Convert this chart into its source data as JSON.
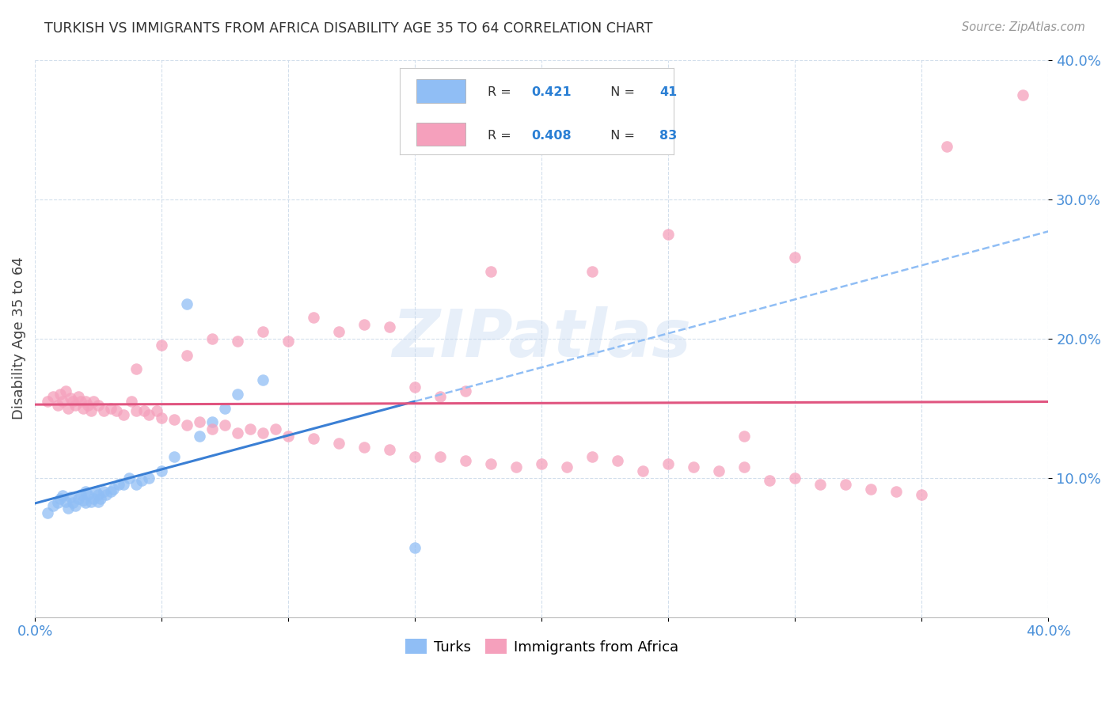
{
  "title": "TURKISH VS IMMIGRANTS FROM AFRICA DISABILITY AGE 35 TO 64 CORRELATION CHART",
  "source": "Source: ZipAtlas.com",
  "ylabel": "Disability Age 35 to 64",
  "xlim": [
    0.0,
    0.4
  ],
  "ylim": [
    0.0,
    0.4
  ],
  "turks_color": "#90bef5",
  "africa_color": "#f5a0bc",
  "trendline_turks_solid_color": "#3a7fd4",
  "trendline_turks_dash_color": "#90bef5",
  "trendline_africa_color": "#e05580",
  "background_color": "#ffffff",
  "watermark": "ZIPatlas",
  "turks_x": [
    0.005,
    0.007,
    0.009,
    0.01,
    0.011,
    0.012,
    0.013,
    0.014,
    0.015,
    0.016,
    0.017,
    0.018,
    0.019,
    0.02,
    0.02,
    0.021,
    0.022,
    0.023,
    0.024,
    0.025,
    0.025,
    0.026,
    0.027,
    0.028,
    0.03,
    0.031,
    0.033,
    0.035,
    0.037,
    0.04,
    0.042,
    0.045,
    0.05,
    0.055,
    0.06,
    0.065,
    0.07,
    0.075,
    0.08,
    0.09,
    0.15
  ],
  "turks_y": [
    0.075,
    0.08,
    0.082,
    0.085,
    0.087,
    0.083,
    0.078,
    0.086,
    0.082,
    0.08,
    0.085,
    0.088,
    0.084,
    0.082,
    0.09,
    0.088,
    0.083,
    0.085,
    0.09,
    0.083,
    0.088,
    0.085,
    0.09,
    0.088,
    0.09,
    0.092,
    0.095,
    0.095,
    0.1,
    0.095,
    0.098,
    0.1,
    0.105,
    0.115,
    0.225,
    0.13,
    0.14,
    0.15,
    0.16,
    0.17,
    0.05
  ],
  "africa_x": [
    0.005,
    0.007,
    0.009,
    0.01,
    0.011,
    0.012,
    0.013,
    0.014,
    0.015,
    0.016,
    0.017,
    0.018,
    0.019,
    0.02,
    0.021,
    0.022,
    0.023,
    0.025,
    0.027,
    0.03,
    0.032,
    0.035,
    0.038,
    0.04,
    0.043,
    0.045,
    0.048,
    0.05,
    0.055,
    0.06,
    0.065,
    0.07,
    0.075,
    0.08,
    0.085,
    0.09,
    0.095,
    0.1,
    0.11,
    0.12,
    0.13,
    0.14,
    0.15,
    0.16,
    0.17,
    0.18,
    0.19,
    0.2,
    0.21,
    0.22,
    0.23,
    0.24,
    0.25,
    0.26,
    0.27,
    0.28,
    0.29,
    0.3,
    0.31,
    0.32,
    0.33,
    0.34,
    0.35,
    0.04,
    0.05,
    0.06,
    0.07,
    0.08,
    0.09,
    0.1,
    0.11,
    0.12,
    0.13,
    0.14,
    0.15,
    0.16,
    0.17,
    0.28,
    0.3,
    0.25,
    0.22,
    0.18,
    0.39,
    0.36
  ],
  "africa_y": [
    0.155,
    0.158,
    0.152,
    0.16,
    0.155,
    0.162,
    0.15,
    0.157,
    0.155,
    0.152,
    0.158,
    0.155,
    0.15,
    0.155,
    0.152,
    0.148,
    0.155,
    0.152,
    0.148,
    0.15,
    0.148,
    0.145,
    0.155,
    0.148,
    0.148,
    0.145,
    0.148,
    0.143,
    0.142,
    0.138,
    0.14,
    0.135,
    0.138,
    0.132,
    0.135,
    0.132,
    0.135,
    0.13,
    0.128,
    0.125,
    0.122,
    0.12,
    0.115,
    0.115,
    0.112,
    0.11,
    0.108,
    0.11,
    0.108,
    0.115,
    0.112,
    0.105,
    0.11,
    0.108,
    0.105,
    0.108,
    0.098,
    0.1,
    0.095,
    0.095,
    0.092,
    0.09,
    0.088,
    0.178,
    0.195,
    0.188,
    0.2,
    0.198,
    0.205,
    0.198,
    0.215,
    0.205,
    0.21,
    0.208,
    0.165,
    0.158,
    0.162,
    0.13,
    0.258,
    0.275,
    0.248,
    0.248,
    0.375,
    0.338
  ]
}
